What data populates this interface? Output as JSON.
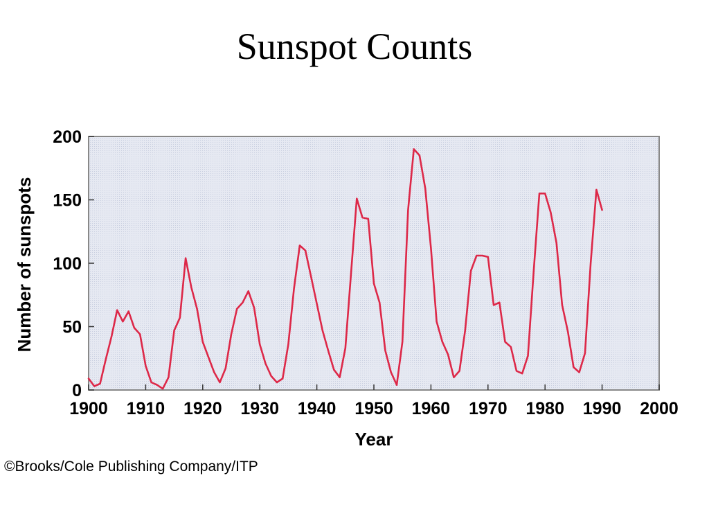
{
  "slide": {
    "title": "Sunspot Counts",
    "credit": "©Brooks/Cole Publishing Company/ITP"
  },
  "chart_data": {
    "type": "line",
    "title": "",
    "xlabel": "Year",
    "ylabel": "Number of sunspots",
    "xlim": [
      1900,
      2000
    ],
    "ylim": [
      0,
      200
    ],
    "xticks": [
      1900,
      1910,
      1920,
      1930,
      1940,
      1950,
      1960,
      1970,
      1980,
      1990,
      2000
    ],
    "yticks": [
      0,
      50,
      100,
      150,
      200
    ],
    "grid": false,
    "legend": "none",
    "colors": {
      "line": "#dd2848",
      "plot_background": "#e4e8f2",
      "frame": "#888888"
    },
    "series": [
      {
        "x": [
          1900,
          1901,
          1902,
          1903,
          1904,
          1905,
          1906,
          1907,
          1908,
          1909,
          1910,
          1911,
          1912,
          1913,
          1914,
          1915,
          1916,
          1917,
          1918,
          1919,
          1920,
          1921,
          1922,
          1923,
          1924,
          1925,
          1926,
          1927,
          1928,
          1929,
          1930,
          1931,
          1932,
          1933,
          1934,
          1935,
          1936,
          1937,
          1938,
          1939,
          1940,
          1941,
          1942,
          1943,
          1944,
          1945,
          1946,
          1947,
          1948,
          1949,
          1950,
          1951,
          1952,
          1953,
          1954,
          1955,
          1956,
          1957,
          1958,
          1959,
          1960,
          1961,
          1962,
          1963,
          1964,
          1965,
          1966,
          1967,
          1968,
          1969,
          1970,
          1971,
          1972,
          1973,
          1974,
          1975,
          1976,
          1977,
          1978,
          1979,
          1980,
          1981,
          1982,
          1983,
          1984,
          1985,
          1986,
          1987,
          1988,
          1989,
          1990
        ],
        "y": [
          9,
          3,
          5,
          24,
          42,
          63,
          54,
          62,
          49,
          44,
          19,
          6,
          4,
          1,
          10,
          47,
          57,
          104,
          81,
          64,
          38,
          26,
          14,
          6,
          17,
          44,
          64,
          69,
          78,
          65,
          36,
          21,
          11,
          6,
          9,
          36,
          80,
          114,
          110,
          89,
          68,
          47,
          31,
          16,
          10,
          33,
          92,
          151,
          136,
          135,
          84,
          69,
          31,
          14,
          4,
          38,
          142,
          190,
          185,
          159,
          112,
          54,
          38,
          28,
          10,
          15,
          47,
          94,
          106,
          106,
          105,
          67,
          69,
          38,
          34,
          15,
          13,
          27,
          93,
          155,
          155,
          140,
          116,
          67,
          46,
          18,
          14,
          29,
          100,
          158,
          142
        ]
      }
    ]
  }
}
